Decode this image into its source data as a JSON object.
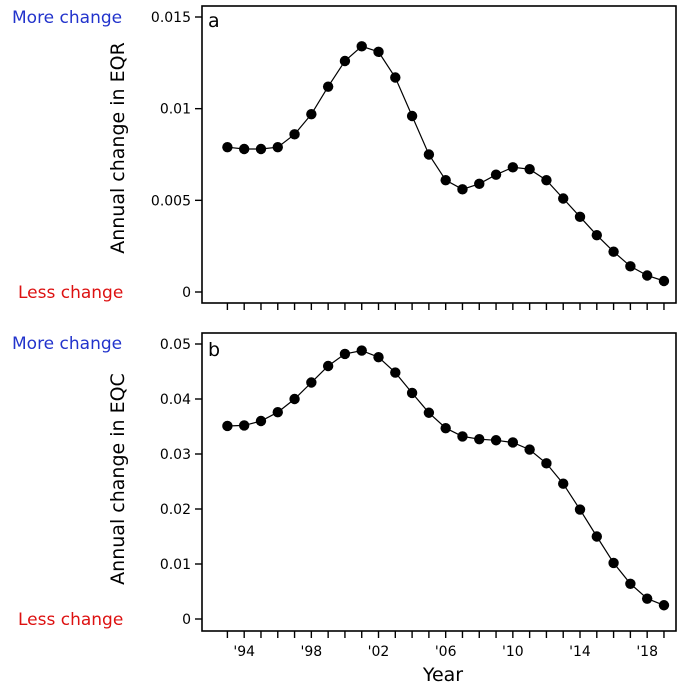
{
  "chart_data": [
    {
      "type": "line",
      "panel_label": "a",
      "ylabel": "Annual change in EQR",
      "xlabel": "",
      "top_note": "More change",
      "bottom_note": "Less change",
      "ylim": [
        0,
        0.015
      ],
      "yticks": [
        0,
        0.005,
        0.01,
        0.015
      ],
      "ytick_labels": [
        "0",
        "0.005",
        "0.01",
        "0.015"
      ],
      "xlim": [
        1992.5,
        2019.3
      ],
      "xticks": [
        1993,
        1994,
        1995,
        1996,
        1997,
        1998,
        1999,
        2000,
        2001,
        2002,
        2003,
        2004,
        2005,
        2006,
        2007,
        2008,
        2009,
        2010,
        2011,
        2012,
        2013,
        2014,
        2015,
        2016,
        2017,
        2018,
        2019
      ],
      "xtick_labels": [],
      "x": [
        1993,
        1994,
        1995,
        1996,
        1997,
        1998,
        1999,
        2000,
        2001,
        2002,
        2003,
        2004,
        2005,
        2006,
        2007,
        2008,
        2009,
        2010,
        2011,
        2012,
        2013,
        2014,
        2015,
        2016,
        2017,
        2018,
        2019
      ],
      "y": [
        0.0079,
        0.0078,
        0.0078,
        0.0079,
        0.0086,
        0.0097,
        0.0112,
        0.0126,
        0.0134,
        0.0131,
        0.0117,
        0.0096,
        0.0075,
        0.0061,
        0.0056,
        0.0059,
        0.0064,
        0.0068,
        0.0067,
        0.0061,
        0.0051,
        0.0041,
        0.0031,
        0.0022,
        0.0014,
        0.0009,
        0.0006
      ],
      "grid": false,
      "legend": "none"
    },
    {
      "type": "line",
      "panel_label": "b",
      "ylabel": "Annual change in EQC",
      "xlabel": "Year",
      "top_note": "More change",
      "bottom_note": "Less change",
      "ylim": [
        0,
        0.05
      ],
      "yticks": [
        0,
        0.01,
        0.02,
        0.03,
        0.04,
        0.05
      ],
      "ytick_labels": [
        "0",
        "0.01",
        "0.02",
        "0.03",
        "0.04",
        "0.05"
      ],
      "xlim": [
        1992.5,
        2019.3
      ],
      "xticks": [
        1993,
        1994,
        1995,
        1996,
        1997,
        1998,
        1999,
        2000,
        2001,
        2002,
        2003,
        2004,
        2005,
        2006,
        2007,
        2008,
        2009,
        2010,
        2011,
        2012,
        2013,
        2014,
        2015,
        2016,
        2017,
        2018,
        2019
      ],
      "xtick_labels": [
        {
          "x": 1994,
          "label": "'94"
        },
        {
          "x": 1998,
          "label": "'98"
        },
        {
          "x": 2002,
          "label": "'02"
        },
        {
          "x": 2006,
          "label": "'06"
        },
        {
          "x": 2010,
          "label": "'10"
        },
        {
          "x": 2014,
          "label": "'14"
        },
        {
          "x": 2018,
          "label": "'18"
        }
      ],
      "x": [
        1993,
        1994,
        1995,
        1996,
        1997,
        1998,
        1999,
        2000,
        2001,
        2002,
        2003,
        2004,
        2005,
        2006,
        2007,
        2008,
        2009,
        2010,
        2011,
        2012,
        2013,
        2014,
        2015,
        2016,
        2017,
        2018,
        2019
      ],
      "y": [
        0.0351,
        0.0352,
        0.036,
        0.0376,
        0.04,
        0.043,
        0.046,
        0.0482,
        0.0488,
        0.0476,
        0.0448,
        0.0411,
        0.0375,
        0.0347,
        0.0332,
        0.0327,
        0.0325,
        0.0321,
        0.0308,
        0.0283,
        0.0246,
        0.0199,
        0.015,
        0.0102,
        0.0064,
        0.0037,
        0.0025
      ],
      "grid": false,
      "legend": "none"
    }
  ],
  "colors": {
    "more_change": "#2233cc",
    "less_change": "#dd1111",
    "series": "#000000"
  }
}
